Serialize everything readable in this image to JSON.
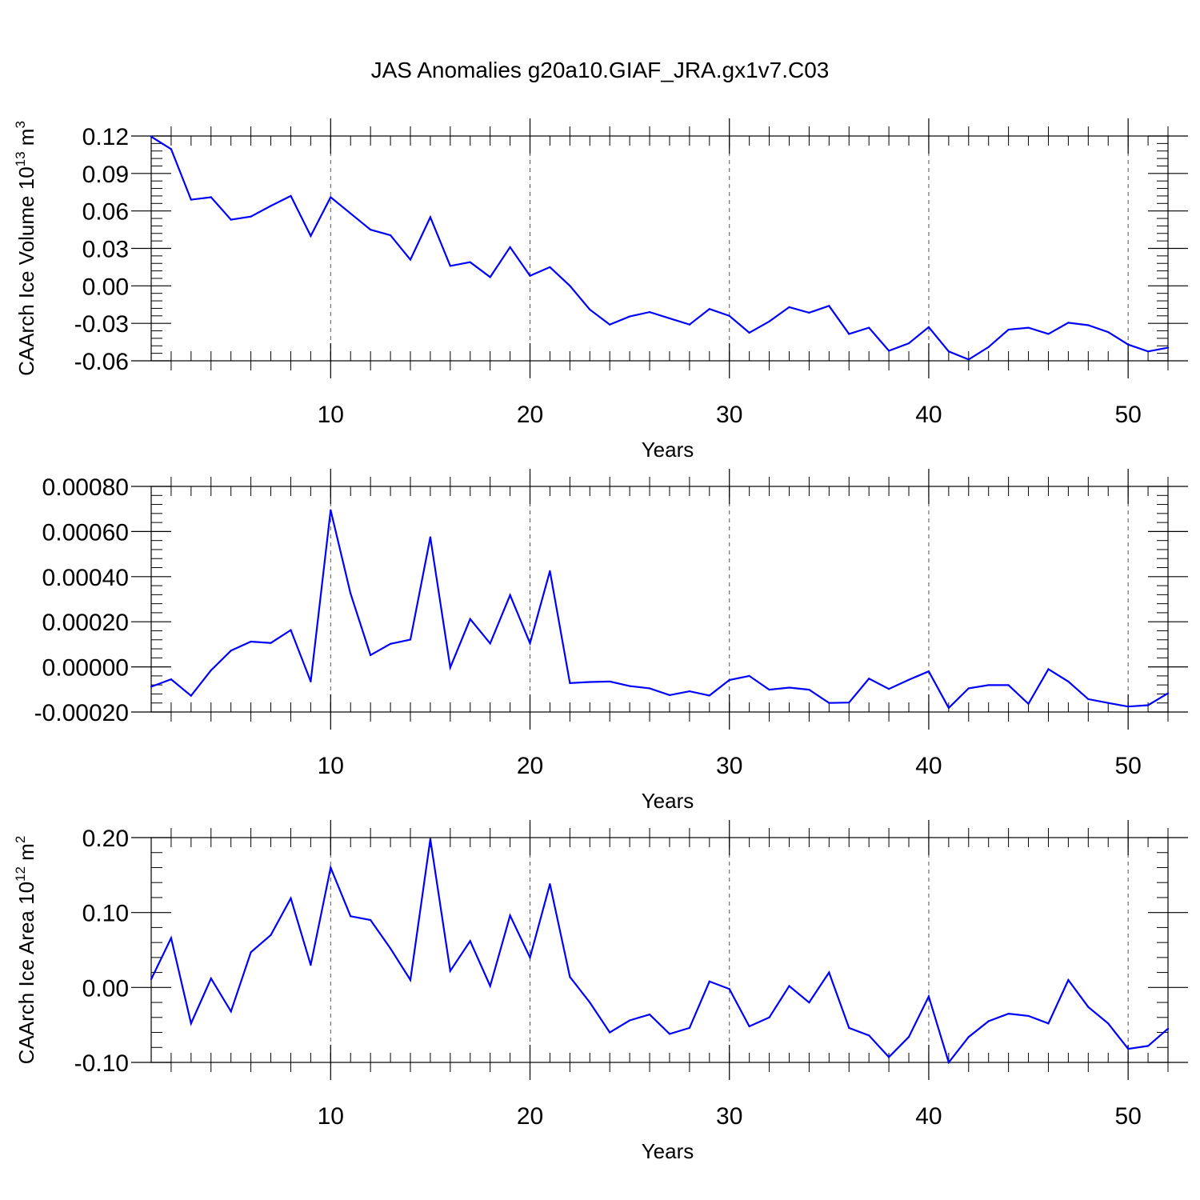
{
  "title": "JAS Anomalies g20a10.GIAF_JRA.gx1v7.C03",
  "style": {
    "line_color": "#0000ff",
    "axis_color": "#000000",
    "grid_color": "#555555"
  },
  "chart_data": [
    {
      "type": "line",
      "ylabel": "CAArch Ice Volume 10",
      "ylabel_sup1": "13",
      "ylabel_mid": " m",
      "ylabel_sup2": "3",
      "xlabel": "Years",
      "xlim": [
        1,
        52
      ],
      "ylim": [
        -0.06,
        0.12
      ],
      "xticks": [
        10,
        20,
        30,
        40,
        50
      ],
      "xtick_labels": [
        "10",
        "20",
        "30",
        "40",
        "50"
      ],
      "yticks": [
        -0.06,
        -0.03,
        0.0,
        0.03,
        0.06,
        0.09,
        0.12
      ],
      "ytick_labels": [
        "-0.06",
        "-0.03",
        "0.00",
        "0.03",
        "0.06",
        "0.09",
        "0.12"
      ],
      "grid": "vertical dashed at major x ticks",
      "series": [
        {
          "x": [
            1,
            2,
            3,
            4,
            5,
            6,
            7,
            8,
            9,
            10,
            11,
            12,
            13,
            14,
            15,
            16,
            17,
            18,
            19,
            20,
            21,
            22,
            23,
            24,
            25,
            26,
            27,
            28,
            29,
            30,
            31,
            32,
            33,
            34,
            35,
            36,
            37,
            38,
            39,
            40,
            41,
            42,
            43,
            44,
            45,
            46,
            47,
            48,
            49,
            50,
            51,
            52
          ],
          "values": [
            0.1195,
            0.1095,
            0.069,
            0.071,
            0.053,
            0.0555,
            0.064,
            0.072,
            0.04,
            0.071,
            0.058,
            0.045,
            0.0405,
            0.021,
            0.055,
            0.016,
            0.019,
            0.007,
            0.031,
            0.008,
            0.015,
            0.0,
            -0.019,
            -0.031,
            -0.0245,
            -0.021,
            -0.026,
            -0.031,
            -0.0185,
            -0.024,
            -0.0375,
            -0.0285,
            -0.017,
            -0.0215,
            -0.016,
            -0.0385,
            -0.0335,
            -0.052,
            -0.046,
            -0.033,
            -0.0525,
            -0.059,
            -0.049,
            -0.035,
            -0.0335,
            -0.0385,
            -0.0295,
            -0.0315,
            -0.037,
            -0.047,
            -0.0525,
            -0.0495
          ]
        }
      ]
    },
    {
      "type": "line",
      "ylabel": "",
      "xlabel": "Years",
      "xlim": [
        1,
        52
      ],
      "ylim": [
        -0.0002,
        0.0008
      ],
      "xticks": [
        10,
        20,
        30,
        40,
        50
      ],
      "xtick_labels": [
        "10",
        "20",
        "30",
        "40",
        "50"
      ],
      "yticks": [
        -0.0002,
        0.0,
        0.0002,
        0.0004,
        0.0006,
        0.0008
      ],
      "ytick_labels": [
        "-0.00020",
        "0.00000",
        "0.00020",
        "0.00040",
        "0.00060",
        "0.00080"
      ],
      "grid": "vertical dashed at major x ticks",
      "series": [
        {
          "x": [
            1,
            2,
            3,
            4,
            5,
            6,
            7,
            8,
            9,
            10,
            11,
            12,
            13,
            14,
            15,
            16,
            17,
            18,
            19,
            20,
            21,
            22,
            23,
            24,
            25,
            26,
            27,
            28,
            29,
            30,
            31,
            32,
            33,
            34,
            35,
            36,
            37,
            38,
            39,
            40,
            41,
            42,
            43,
            44,
            45,
            46,
            47,
            48,
            49,
            50,
            51,
            52
          ],
          "values": [
            -8.8e-05,
            -5.5e-05,
            -0.000128,
            -1.5e-05,
            7.2e-05,
            0.000112,
            0.000106,
            0.000163,
            -6.5e-05,
            0.000695,
            0.000325,
            5.2e-05,
            0.000102,
            0.000121,
            0.000575,
            -3e-06,
            0.000212,
            0.000104,
            0.000318,
            0.000105,
            0.000425,
            -7.2e-05,
            -6.7e-05,
            -6.5e-05,
            -8.5e-05,
            -9.5e-05,
            -0.000125,
            -0.000108,
            -0.000127,
            -5.8e-05,
            -4e-05,
            -0.000101,
            -9.2e-05,
            -0.000101,
            -0.00016,
            -0.000158,
            -5.2e-05,
            -9.8e-05,
            -5.7e-05,
            -2e-05,
            -0.000182,
            -9.5e-05,
            -8.1e-05,
            -8.1e-05,
            -0.000164,
            -1e-05,
            -6.5e-05,
            -0.000143,
            -0.00016,
            -0.000176,
            -0.00017,
            -0.000117
          ]
        }
      ]
    },
    {
      "type": "line",
      "ylabel": "CAArch Ice Area 10",
      "ylabel_sup1": "12",
      "ylabel_mid": " m",
      "ylabel_sup2": "2",
      "xlabel": "Years",
      "xlim": [
        1,
        52
      ],
      "ylim": [
        -0.1,
        0.2
      ],
      "xticks": [
        10,
        20,
        30,
        40,
        50
      ],
      "xtick_labels": [
        "10",
        "20",
        "30",
        "40",
        "50"
      ],
      "yticks": [
        -0.1,
        0.0,
        0.1,
        0.2
      ],
      "ytick_labels": [
        "-0.10",
        "0.00",
        "0.10",
        "0.20"
      ],
      "grid": "vertical dashed at major x ticks",
      "series": [
        {
          "x": [
            1,
            2,
            3,
            4,
            5,
            6,
            7,
            8,
            9,
            10,
            11,
            12,
            13,
            14,
            15,
            16,
            17,
            18,
            19,
            20,
            21,
            22,
            23,
            24,
            25,
            26,
            27,
            28,
            29,
            30,
            31,
            32,
            33,
            34,
            35,
            36,
            37,
            38,
            39,
            40,
            41,
            42,
            43,
            44,
            45,
            46,
            47,
            48,
            49,
            50,
            51,
            52
          ],
          "values": [
            0.011,
            0.066,
            -0.048,
            0.012,
            -0.032,
            0.047,
            0.07,
            0.119,
            0.03,
            0.16,
            0.095,
            0.09,
            0.052,
            0.01,
            0.198,
            0.022,
            0.062,
            0.002,
            0.096,
            0.04,
            0.138,
            0.014,
            -0.02,
            -0.06,
            -0.044,
            -0.036,
            -0.062,
            -0.054,
            0.008,
            -0.002,
            -0.052,
            -0.04,
            0.002,
            -0.02,
            0.02,
            -0.054,
            -0.064,
            -0.093,
            -0.066,
            -0.012,
            -0.1,
            -0.066,
            -0.045,
            -0.035,
            -0.038,
            -0.048,
            0.01,
            -0.026,
            -0.048,
            -0.082,
            -0.078,
            -0.055
          ]
        }
      ]
    }
  ]
}
